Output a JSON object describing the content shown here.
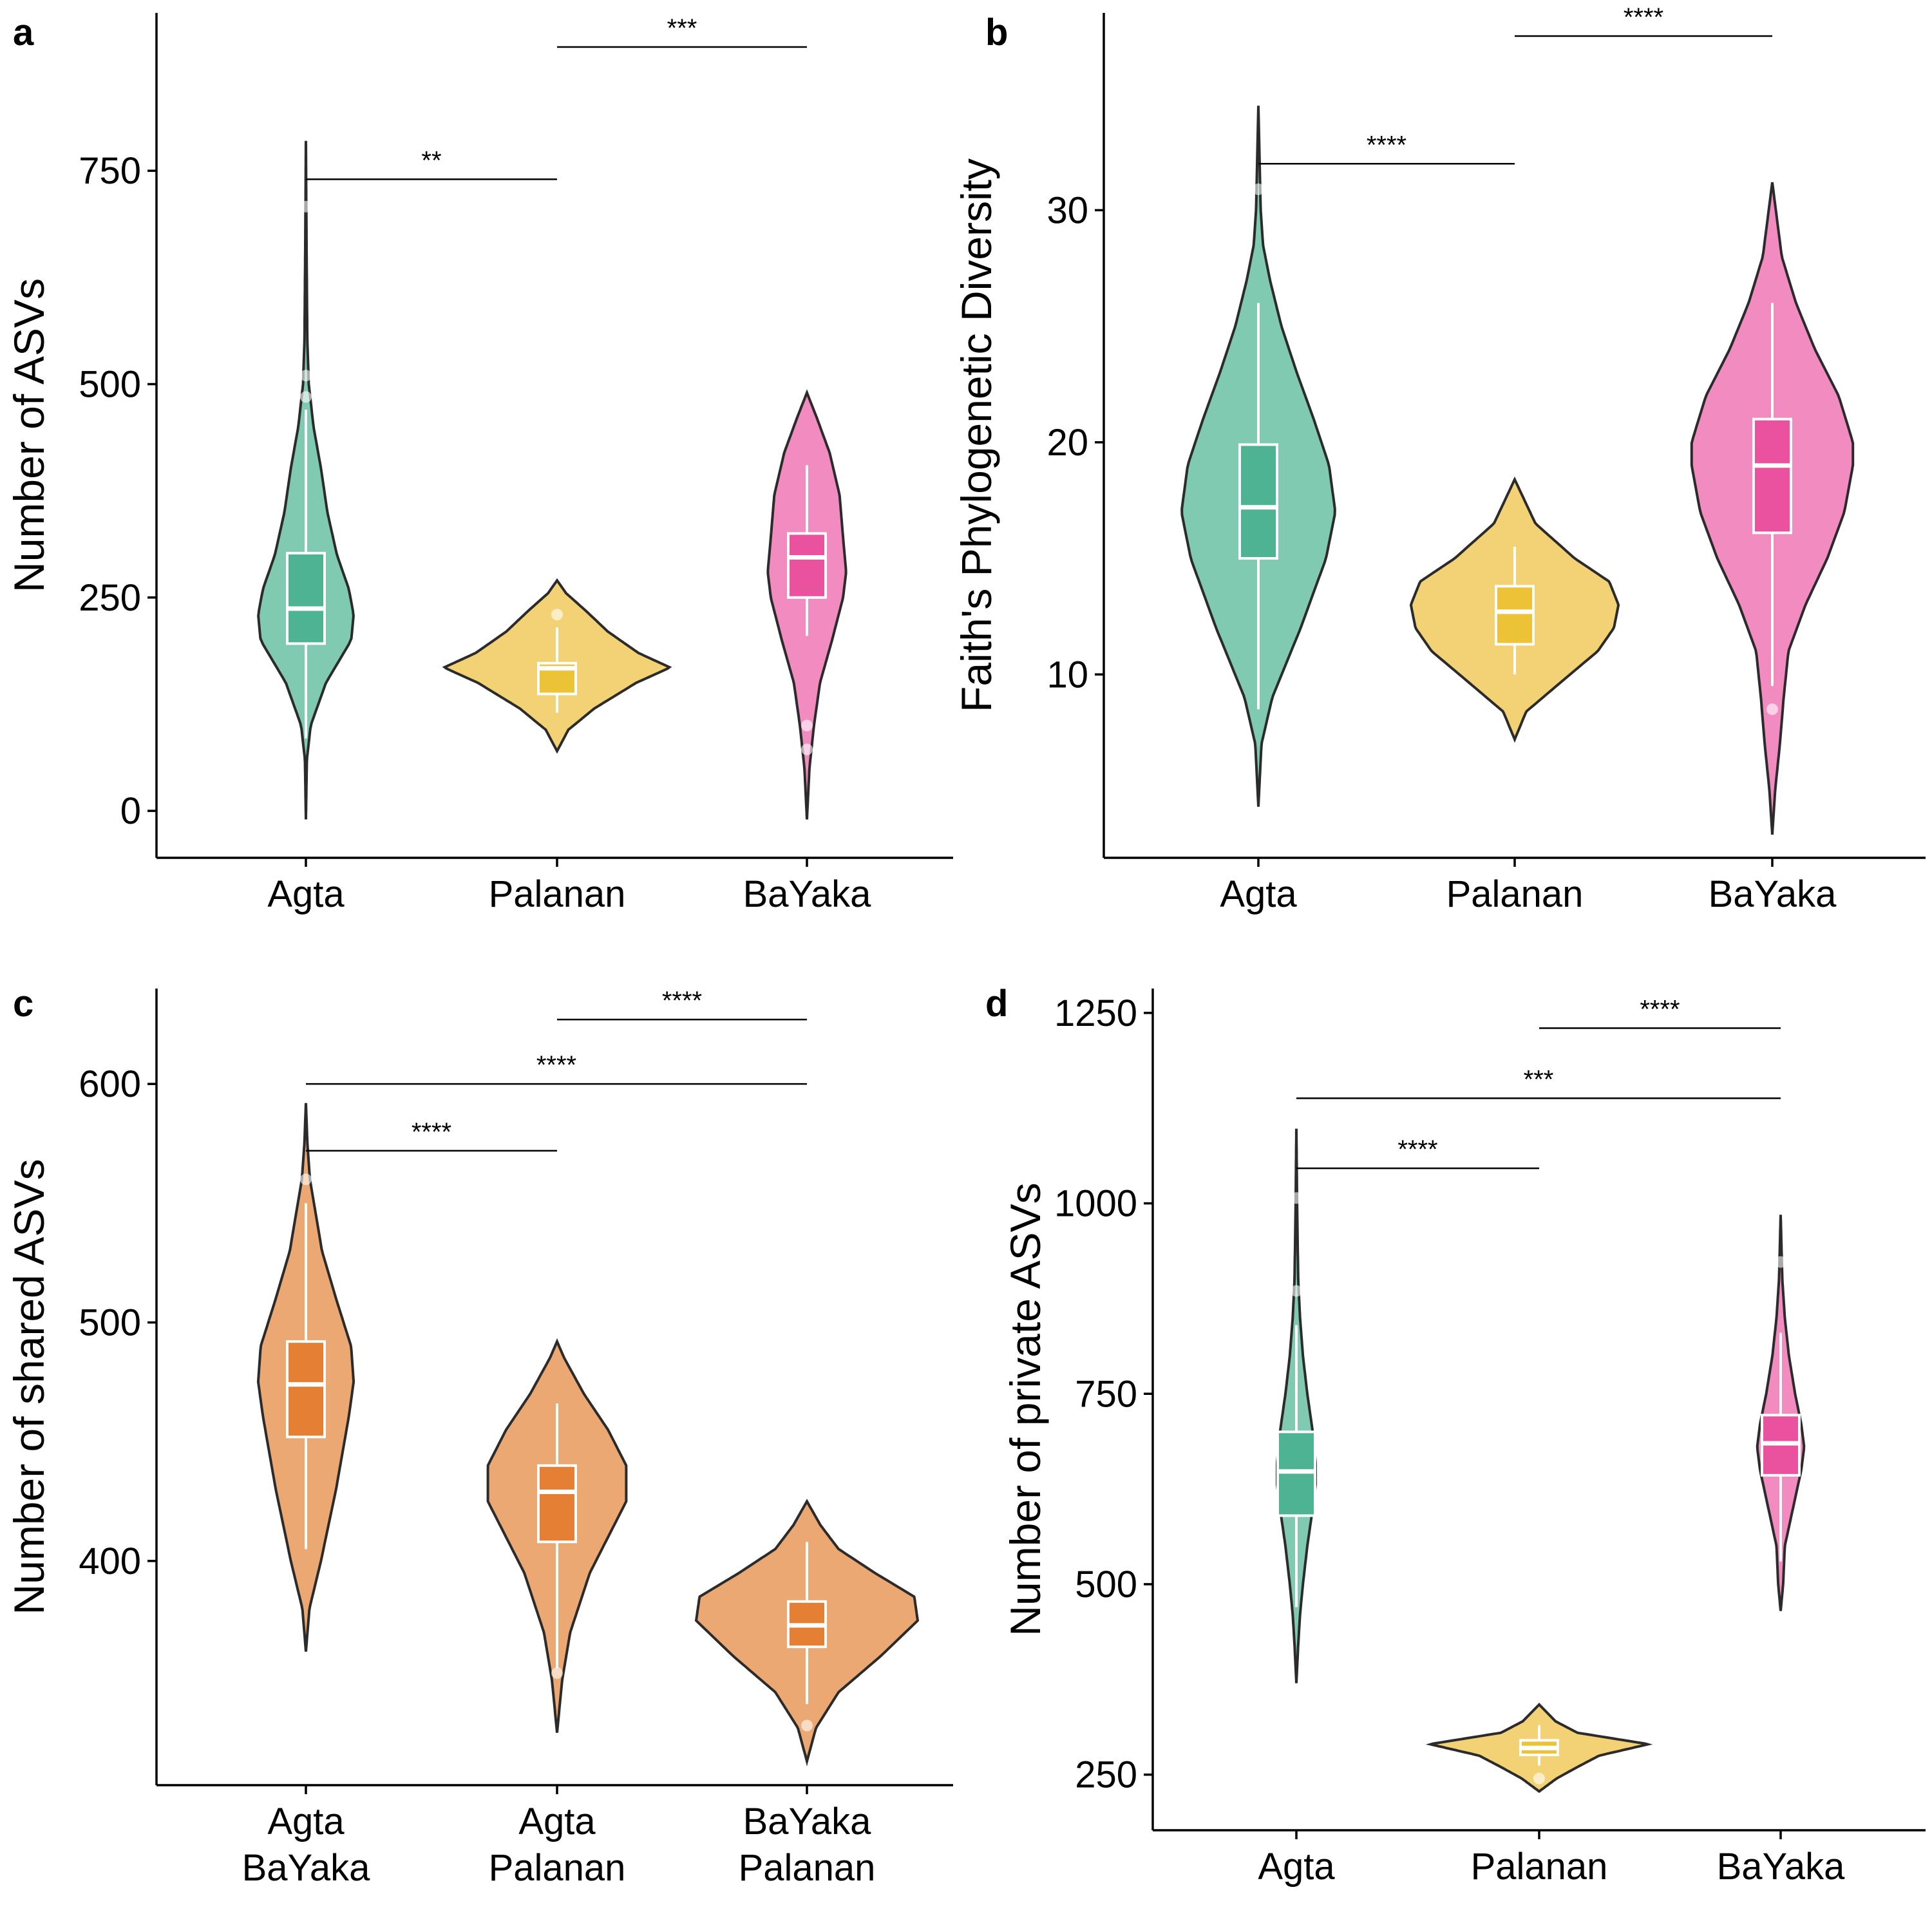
{
  "colors": {
    "Agta": {
      "violin": "#7fcab0",
      "box": "#4db392"
    },
    "Palanan": {
      "violin": "#f2d274",
      "box": "#ecc236"
    },
    "BaYaka": {
      "violin": "#f28cc0",
      "box": "#ea519e"
    },
    "shared": {
      "violin": "#eba872",
      "box": "#e57f33"
    }
  },
  "chart_data": [
    {
      "panel": "a",
      "type": "violin",
      "ylabel": "Number of ASVs",
      "ylim": [
        -55,
        935
      ],
      "yticks": [
        0,
        250,
        500,
        750
      ],
      "categories": [
        [
          "Agta"
        ],
        [
          "Palanan"
        ],
        [
          "BaYaka"
        ]
      ],
      "groups": [
        {
          "name": "Agta",
          "colorKey": "Agta",
          "min": -10,
          "max": 785,
          "profile": [
            [
              -10,
              0.0
            ],
            [
              60,
              0.02
            ],
            [
              100,
              0.1
            ],
            [
              150,
              0.42
            ],
            [
              200,
              0.95
            ],
            [
              230,
              1.0
            ],
            [
              260,
              0.9
            ],
            [
              300,
              0.65
            ],
            [
              350,
              0.45
            ],
            [
              400,
              0.32
            ],
            [
              450,
              0.16
            ],
            [
              500,
              0.06
            ],
            [
              550,
              0.03
            ],
            [
              650,
              0.015
            ],
            [
              785,
              0.0
            ]
          ],
          "maxHalf": 0.19,
          "box": {
            "q1": 196,
            "median": 237,
            "q3": 302,
            "wlo": 85,
            "whi": 470
          },
          "outliers": [
            485,
            510,
            708
          ]
        },
        {
          "name": "Palanan",
          "colorKey": "Palanan",
          "min": 70,
          "max": 270,
          "profile": [
            [
              70,
              0.0
            ],
            [
              95,
              0.1
            ],
            [
              120,
              0.33
            ],
            [
              150,
              0.7
            ],
            [
              168,
              1.0
            ],
            [
              185,
              0.72
            ],
            [
              210,
              0.45
            ],
            [
              235,
              0.25
            ],
            [
              255,
              0.08
            ],
            [
              270,
              0.0
            ]
          ],
          "maxHalf": 0.45,
          "box": {
            "q1": 137,
            "median": 167,
            "q3": 173,
            "wlo": 115,
            "whi": 215
          },
          "outliers": [
            230
          ]
        },
        {
          "name": "BaYaka",
          "colorKey": "BaYaka",
          "min": -10,
          "max": 490,
          "profile": [
            [
              -10,
              0.0
            ],
            [
              50,
              0.05
            ],
            [
              100,
              0.14
            ],
            [
              150,
              0.26
            ],
            [
              200,
              0.5
            ],
            [
              250,
              0.72
            ],
            [
              280,
              0.78
            ],
            [
              320,
              0.72
            ],
            [
              370,
              0.65
            ],
            [
              420,
              0.45
            ],
            [
              460,
              0.2
            ],
            [
              490,
              0.0
            ]
          ],
          "maxHalf": 0.2,
          "box": {
            "q1": 250,
            "median": 297,
            "q3": 325,
            "wlo": 205,
            "whi": 405
          },
          "outliers": [
            72,
            100
          ]
        }
      ],
      "significance": [
        {
          "from": 0,
          "to": 1,
          "y": 740,
          "label": "**"
        },
        {
          "from": 1,
          "to": 2,
          "y": 895,
          "label": "***"
        }
      ]
    },
    {
      "panel": "b",
      "type": "violin",
      "ylabel": "Faith's Phylogenetic Diversity",
      "ylim": [
        2.1,
        38.5
      ],
      "yticks": [
        10,
        20,
        30
      ],
      "categories": [
        [
          "Agta"
        ],
        [
          "Palanan"
        ],
        [
          "BaYaka"
        ]
      ],
      "groups": [
        {
          "name": "Agta",
          "colorKey": "Agta",
          "min": 4.3,
          "max": 34.5,
          "profile": [
            [
              4.3,
              0.0
            ],
            [
              7,
              0.04
            ],
            [
              9,
              0.18
            ],
            [
              12,
              0.55
            ],
            [
              15,
              0.88
            ],
            [
              17,
              1.0
            ],
            [
              19,
              0.92
            ],
            [
              21,
              0.72
            ],
            [
              23,
              0.5
            ],
            [
              25,
              0.3
            ],
            [
              27,
              0.15
            ],
            [
              28.5,
              0.06
            ],
            [
              30,
              0.03
            ],
            [
              34.5,
              0.0
            ]
          ],
          "maxHalf": 0.3,
          "box": {
            "q1": 15.0,
            "median": 17.2,
            "q3": 19.9,
            "wlo": 8.5,
            "whi": 26.0
          },
          "outliers": [
            30.9
          ]
        },
        {
          "name": "Palanan",
          "colorKey": "Palanan",
          "min": 7.2,
          "max": 18.4,
          "profile": [
            [
              7.2,
              0.0
            ],
            [
              8.4,
              0.1
            ],
            [
              10,
              0.48
            ],
            [
              11,
              0.72
            ],
            [
              12,
              0.86
            ],
            [
              13,
              0.9
            ],
            [
              14,
              0.82
            ],
            [
              15,
              0.52
            ],
            [
              16.5,
              0.18
            ],
            [
              18.4,
              0.0
            ]
          ],
          "maxHalf": 0.45,
          "box": {
            "q1": 11.3,
            "median": 12.7,
            "q3": 13.8,
            "wlo": 10.0,
            "whi": 15.5
          },
          "outliers": []
        },
        {
          "name": "BaYaka",
          "colorKey": "BaYaka",
          "min": 3.1,
          "max": 31.2,
          "profile": [
            [
              3.1,
              0.0
            ],
            [
              5,
              0.03
            ],
            [
              7,
              0.08
            ],
            [
              9,
              0.12
            ],
            [
              11,
              0.17
            ],
            [
              13,
              0.35
            ],
            [
              15,
              0.58
            ],
            [
              17,
              0.76
            ],
            [
              19,
              0.85
            ],
            [
              20,
              0.85
            ],
            [
              22,
              0.7
            ],
            [
              24,
              0.45
            ],
            [
              26,
              0.25
            ],
            [
              28,
              0.1
            ],
            [
              31.2,
              0.0
            ]
          ],
          "maxHalf": 0.37,
          "box": {
            "q1": 16.1,
            "median": 19.0,
            "q3": 21.0,
            "wlo": 9.5,
            "whi": 26.0
          },
          "outliers": [
            8.5
          ]
        }
      ],
      "significance": [
        {
          "from": 0,
          "to": 1,
          "y": 32.0,
          "label": "****"
        },
        {
          "from": 1,
          "to": 2,
          "y": 37.5,
          "label": "****"
        }
      ]
    },
    {
      "panel": "c",
      "type": "violin",
      "ylabel": "Number of shared ASVs",
      "ylim": [
        306,
        640
      ],
      "yticks": [
        400,
        500,
        600
      ],
      "categories": [
        [
          "Agta",
          "BaYaka"
        ],
        [
          "Agta",
          "Palanan"
        ],
        [
          "BaYaka",
          "Palanan"
        ]
      ],
      "groups": [
        {
          "name": "Agta BaYaka",
          "colorKey": "shared",
          "min": 362,
          "max": 592,
          "profile": [
            [
              362,
              0.0
            ],
            [
              380,
              0.07
            ],
            [
              400,
              0.3
            ],
            [
              430,
              0.6
            ],
            [
              460,
              0.85
            ],
            [
              475,
              0.95
            ],
            [
              490,
              0.9
            ],
            [
              510,
              0.6
            ],
            [
              530,
              0.32
            ],
            [
              560,
              0.08
            ],
            [
              575,
              0.03
            ],
            [
              592,
              0.0
            ]
          ],
          "maxHalf": 0.2,
          "box": {
            "q1": 452,
            "median": 474,
            "q3": 492,
            "wlo": 405,
            "whi": 550
          },
          "outliers": [
            560
          ]
        },
        {
          "name": "Agta Palanan",
          "colorKey": "shared",
          "min": 328,
          "max": 492,
          "profile": [
            [
              328,
              0.0
            ],
            [
              350,
              0.07
            ],
            [
              370,
              0.18
            ],
            [
              395,
              0.45
            ],
            [
              410,
              0.7
            ],
            [
              425,
              0.95
            ],
            [
              440,
              0.95
            ],
            [
              455,
              0.7
            ],
            [
              470,
              0.37
            ],
            [
              485,
              0.1
            ],
            [
              492,
              0.0
            ]
          ],
          "maxHalf": 0.29,
          "box": {
            "q1": 408,
            "median": 429,
            "q3": 440,
            "wlo": 355,
            "whi": 466
          },
          "outliers": [
            353
          ]
        },
        {
          "name": "BaYaka Palanan",
          "colorKey": "shared",
          "min": 316,
          "max": 425,
          "profile": [
            [
              316,
              0.0
            ],
            [
              330,
              0.08
            ],
            [
              345,
              0.28
            ],
            [
              360,
              0.65
            ],
            [
              375,
              0.98
            ],
            [
              385,
              0.95
            ],
            [
              395,
              0.6
            ],
            [
              405,
              0.28
            ],
            [
              415,
              0.12
            ],
            [
              425,
              0.0
            ]
          ],
          "maxHalf": 0.45,
          "box": {
            "q1": 364,
            "median": 373,
            "q3": 383,
            "wlo": 340,
            "whi": 408
          },
          "outliers": [
            331
          ]
        }
      ],
      "significance": [
        {
          "from": 0,
          "to": 1,
          "y": 572,
          "label": "****"
        },
        {
          "from": 0,
          "to": 2,
          "y": 600,
          "label": "****"
        },
        {
          "from": 1,
          "to": 2,
          "y": 627,
          "label": "****"
        }
      ]
    },
    {
      "panel": "d",
      "type": "violin",
      "ylabel": "Number of private ASVs",
      "ylim": [
        177,
        1282
      ],
      "yticks": [
        250,
        500,
        750,
        1000,
        1250
      ],
      "categories": [
        [
          "Agta"
        ],
        [
          "Palanan"
        ],
        [
          "BaYaka"
        ]
      ],
      "groups": [
        {
          "name": "Agta",
          "colorKey": "Agta",
          "min": 370,
          "max": 1098,
          "profile": [
            [
              370,
              0.0
            ],
            [
              420,
              0.05
            ],
            [
              460,
              0.1
            ],
            [
              500,
              0.18
            ],
            [
              550,
              0.3
            ],
            [
              600,
              0.45
            ],
            [
              630,
              0.53
            ],
            [
              660,
              0.53
            ],
            [
              700,
              0.45
            ],
            [
              750,
              0.3
            ],
            [
              800,
              0.18
            ],
            [
              850,
              0.1
            ],
            [
              900,
              0.05
            ],
            [
              1000,
              0.02
            ],
            [
              1098,
              0.0
            ]
          ],
          "maxHalf": 0.15,
          "box": {
            "q1": 590,
            "median": 648,
            "q3": 700,
            "wlo": 470,
            "whi": 840
          },
          "outliers": [
            885,
            1007
          ]
        },
        {
          "name": "Palanan",
          "colorKey": "Palanan",
          "min": 228,
          "max": 342,
          "profile": [
            [
              228,
              0.0
            ],
            [
              245,
              0.16
            ],
            [
              260,
              0.35
            ],
            [
              275,
              0.55
            ],
            [
              290,
              1.0
            ],
            [
              305,
              0.35
            ],
            [
              320,
              0.15
            ],
            [
              342,
              0.0
            ]
          ],
          "maxHalf": 0.45,
          "box": {
            "q1": 276,
            "median": 285,
            "q3": 295,
            "wlo": 262,
            "whi": 315
          },
          "outliers": [
            245
          ]
        },
        {
          "name": "BaYaka",
          "colorKey": "BaYaka",
          "min": 465,
          "max": 985,
          "profile": [
            [
              465,
              0.0
            ],
            [
              500,
              0.06
            ],
            [
              550,
              0.1
            ],
            [
              600,
              0.3
            ],
            [
              650,
              0.5
            ],
            [
              680,
              0.57
            ],
            [
              710,
              0.5
            ],
            [
              750,
              0.35
            ],
            [
              800,
              0.2
            ],
            [
              850,
              0.1
            ],
            [
              900,
              0.04
            ],
            [
              985,
              0.0
            ]
          ],
          "maxHalf": 0.17,
          "box": {
            "q1": 643,
            "median": 685,
            "q3": 722,
            "wlo": 530,
            "whi": 830
          },
          "outliers": [
            923
          ]
        }
      ],
      "significance": [
        {
          "from": 0,
          "to": 1,
          "y": 1046,
          "label": "****"
        },
        {
          "from": 0,
          "to": 2,
          "y": 1138,
          "label": "***"
        },
        {
          "from": 1,
          "to": 2,
          "y": 1230,
          "label": "****"
        }
      ]
    }
  ]
}
